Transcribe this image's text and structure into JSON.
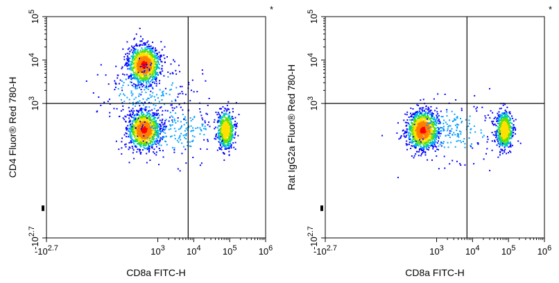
{
  "chart_data": [
    {
      "type": "scatter",
      "subtype": "flow-cytometry-density-plot",
      "marker": "*",
      "xlabel": "CD8a FITC-H",
      "ylabel": "CD4  Fluor® Red 780-H",
      "x_scale": "biexponential",
      "y_scale": "biexponential",
      "xlim": [
        -500,
        1000000
      ],
      "ylim": [
        -500,
        100000
      ],
      "x_ticks": [
        {
          "base": "-10",
          "exp": "2.7",
          "value": -500
        },
        {
          "base": "10",
          "exp": "3",
          "value": 1000
        },
        {
          "base": "10",
          "exp": "4",
          "value": 10000
        },
        {
          "base": "10",
          "exp": "5",
          "value": 100000
        },
        {
          "base": "10",
          "exp": "6",
          "value": 1000000
        }
      ],
      "y_ticks": [
        {
          "base": "-10",
          "exp": "2.7",
          "value": -500
        },
        {
          "base": "10",
          "exp": "3",
          "value": 1000
        },
        {
          "base": "10",
          "exp": "4",
          "value": 10000
        },
        {
          "base": "10",
          "exp": "5",
          "value": 100000
        }
      ],
      "quadrant_gate": {
        "x": 7000,
        "y": 1000
      },
      "populations": [
        {
          "x": 400,
          "y": 8000,
          "density": "high"
        },
        {
          "x": 400,
          "y": 250,
          "density": "high"
        },
        {
          "x": 75000,
          "y": 250,
          "density": "medium"
        },
        {
          "x": 3000,
          "y": 250,
          "density": "low"
        },
        {
          "x": 500,
          "y": 2000,
          "density": "low"
        }
      ]
    },
    {
      "type": "scatter",
      "subtype": "flow-cytometry-density-plot",
      "marker": "*",
      "xlabel": "CD8a FITC-H",
      "ylabel": "Rat IgG2a Fluor® Red 780-H",
      "x_scale": "biexponential",
      "y_scale": "biexponential",
      "xlim": [
        -500,
        1000000
      ],
      "ylim": [
        -500,
        100000
      ],
      "x_ticks": [
        {
          "base": "-10",
          "exp": "2.7",
          "value": -500
        },
        {
          "base": "10",
          "exp": "3",
          "value": 1000
        },
        {
          "base": "10",
          "exp": "4",
          "value": 10000
        },
        {
          "base": "10",
          "exp": "5",
          "value": 100000
        },
        {
          "base": "10",
          "exp": "6",
          "value": 1000000
        }
      ],
      "y_ticks": [
        {
          "base": "-10",
          "exp": "2.7",
          "value": -500
        },
        {
          "base": "10",
          "exp": "3",
          "value": 1000
        },
        {
          "base": "10",
          "exp": "4",
          "value": 10000
        },
        {
          "base": "10",
          "exp": "5",
          "value": 100000
        }
      ],
      "quadrant_gate": {
        "x": 7000,
        "y": 1000
      },
      "populations": [
        {
          "x": 400,
          "y": 250,
          "density": "high"
        },
        {
          "x": 75000,
          "y": 250,
          "density": "medium"
        },
        {
          "x": 3000,
          "y": 250,
          "density": "low"
        }
      ]
    }
  ],
  "colors": {
    "axis": "#000000",
    "density_scale": [
      "#0000ff",
      "#00a0ff",
      "#00d0a0",
      "#60e000",
      "#ffe000",
      "#ff8000",
      "#ff0000"
    ]
  }
}
